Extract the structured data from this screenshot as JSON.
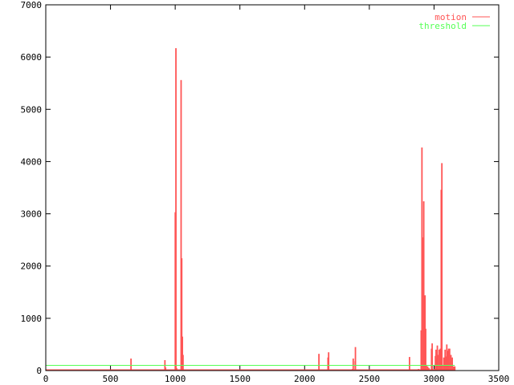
{
  "chart_data": {
    "type": "line",
    "style": "impulses",
    "title": "",
    "xlabel": "",
    "ylabel": "",
    "xlim": [
      0,
      3500
    ],
    "ylim": [
      0,
      7000
    ],
    "xticks": [
      "0",
      "500",
      "1000",
      "1500",
      "2000",
      "2500",
      "3000",
      "3500"
    ],
    "yticks": [
      "0",
      "1000",
      "2000",
      "3000",
      "4000",
      "5000",
      "6000",
      "7000"
    ],
    "grid": false,
    "legend_position": "top-right",
    "series": [
      {
        "name": "motion",
        "color": "#ff5555",
        "points": [
          [
            80,
            20
          ],
          [
            370,
            20
          ],
          [
            380,
            20
          ],
          [
            658,
            230
          ],
          [
            680,
            20
          ],
          [
            700,
            20
          ],
          [
            720,
            20
          ],
          [
            740,
            20
          ],
          [
            790,
            20
          ],
          [
            810,
            20
          ],
          [
            840,
            20
          ],
          [
            920,
            200
          ],
          [
            925,
            60
          ],
          [
            1000,
            3030
          ],
          [
            1005,
            6170
          ],
          [
            1010,
            50
          ],
          [
            1045,
            5560
          ],
          [
            1050,
            2150
          ],
          [
            1055,
            650
          ],
          [
            1060,
            300
          ],
          [
            1250,
            20
          ],
          [
            1270,
            20
          ],
          [
            1320,
            20
          ],
          [
            1360,
            20
          ],
          [
            1400,
            20
          ],
          [
            1420,
            20
          ],
          [
            1440,
            20
          ],
          [
            1460,
            20
          ],
          [
            1590,
            20
          ],
          [
            1610,
            20
          ],
          [
            1640,
            20
          ],
          [
            1680,
            20
          ],
          [
            1700,
            20
          ],
          [
            1720,
            20
          ],
          [
            1840,
            20
          ],
          [
            2100,
            20
          ],
          [
            2110,
            320
          ],
          [
            2120,
            20
          ],
          [
            2140,
            20
          ],
          [
            2180,
            250
          ],
          [
            2185,
            350
          ],
          [
            2200,
            20
          ],
          [
            2230,
            20
          ],
          [
            2290,
            20
          ],
          [
            2300,
            20
          ],
          [
            2370,
            30
          ],
          [
            2375,
            230
          ],
          [
            2390,
            180
          ],
          [
            2392,
            450
          ],
          [
            2400,
            20
          ],
          [
            2420,
            20
          ],
          [
            2480,
            20
          ],
          [
            2500,
            20
          ],
          [
            2550,
            20
          ],
          [
            2600,
            20
          ],
          [
            2650,
            20
          ],
          [
            2700,
            20
          ],
          [
            2770,
            20
          ],
          [
            2810,
            260
          ],
          [
            2830,
            20
          ],
          [
            2880,
            30
          ],
          [
            2900,
            770
          ],
          [
            2906,
            4270
          ],
          [
            2910,
            2550
          ],
          [
            2920,
            3240
          ],
          [
            2925,
            1000
          ],
          [
            2930,
            1440
          ],
          [
            2935,
            800
          ],
          [
            2940,
            100
          ],
          [
            2950,
            80
          ],
          [
            2960,
            50
          ],
          [
            2970,
            20
          ],
          [
            2980,
            420
          ],
          [
            2985,
            520
          ],
          [
            2990,
            20
          ],
          [
            3000,
            30
          ],
          [
            3010,
            280
          ],
          [
            3015,
            400
          ],
          [
            3020,
            240
          ],
          [
            3025,
            480
          ],
          [
            3030,
            300
          ],
          [
            3040,
            400
          ],
          [
            3048,
            420
          ],
          [
            3055,
            3460
          ],
          [
            3060,
            3970
          ],
          [
            3065,
            100
          ],
          [
            3075,
            250
          ],
          [
            3085,
            400
          ],
          [
            3092,
            270
          ],
          [
            3098,
            500
          ],
          [
            3105,
            380
          ],
          [
            3112,
            420
          ],
          [
            3120,
            420
          ],
          [
            3130,
            300
          ],
          [
            3140,
            250
          ],
          [
            3150,
            80
          ],
          [
            3160,
            80
          ]
        ]
      },
      {
        "name": "threshold",
        "color": "#55ff55",
        "points": [
          [
            0,
            100
          ],
          [
            3160,
            100
          ]
        ]
      }
    ]
  }
}
